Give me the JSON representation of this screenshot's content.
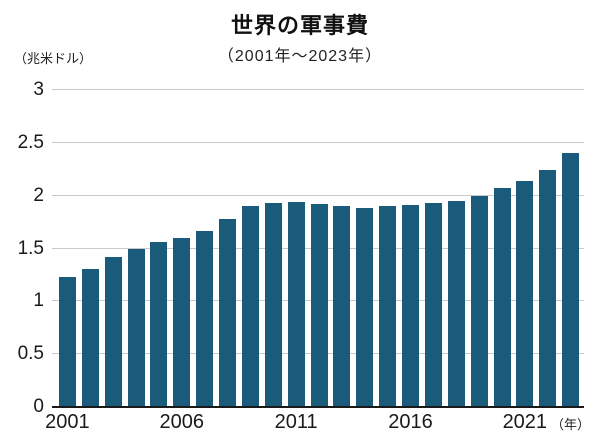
{
  "title": "世界の軍事費",
  "subtitle": "（2001年～2023年）",
  "y_unit_label": "（兆米ドル）",
  "x_unit_label": "（年）",
  "chart_data": {
    "type": "bar",
    "title": "世界の軍事費",
    "subtitle": "（2001年～2023年）",
    "ylabel": "（兆米ドル）",
    "xlabel": "（年）",
    "categories": [
      2001,
      2002,
      2003,
      2004,
      2005,
      2006,
      2007,
      2008,
      2009,
      2010,
      2011,
      2012,
      2013,
      2014,
      2015,
      2016,
      2017,
      2018,
      2019,
      2020,
      2021,
      2022,
      2023
    ],
    "values": [
      1.23,
      1.31,
      1.42,
      1.5,
      1.56,
      1.6,
      1.67,
      1.78,
      1.9,
      1.93,
      1.94,
      1.92,
      1.9,
      1.88,
      1.9,
      1.91,
      1.93,
      1.95,
      2.0,
      2.07,
      2.14,
      2.24,
      2.4
    ],
    "ylim": [
      0,
      3
    ],
    "yticks": [
      0,
      0.5,
      1,
      1.5,
      2,
      2.5,
      3
    ],
    "ytick_labels": [
      "0",
      "0.5",
      "1",
      "1.5",
      "2",
      "2.5",
      "3"
    ],
    "xticks": [
      2001,
      2006,
      2011,
      2016,
      2021
    ],
    "bar_color": "#1a5a7a",
    "grid": true,
    "legend": "none"
  }
}
